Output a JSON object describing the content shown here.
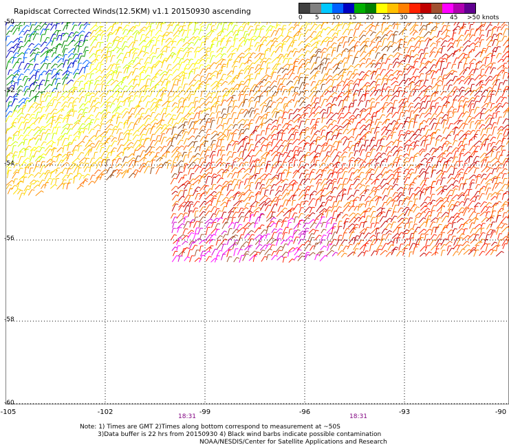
{
  "title": "Rapidscat Corrected Winds(12.5KM) v1.1 20150930 ascending",
  "legend": {
    "colors": [
      "#404040",
      "#808080",
      "#00c8ff",
      "#0060ff",
      "#0000c0",
      "#00b000",
      "#008000",
      "#ffff00",
      "#ffc000",
      "#ff8000",
      "#ff2000",
      "#c00000",
      "#a05030",
      "#ff00ff",
      "#b000b0",
      "#600090"
    ],
    "labels": [
      "0",
      "5",
      "10",
      "15",
      "20",
      "25",
      "30",
      "35",
      "40",
      "45",
      ">50 knots"
    ]
  },
  "map": {
    "lon_ticks": [
      "-105",
      "-102",
      "-99",
      "-96",
      "-93",
      "-90"
    ],
    "lat_ticks": [
      "-50",
      "-52",
      "-54",
      "-56",
      "-58",
      "-60"
    ],
    "time_labels": [
      "18:31",
      "18:31"
    ]
  },
  "notes": {
    "line1": "Note: 1) Times are GMT 2)Times along bottom correspond to measurement at ~50S",
    "line2": "3)Data buffer is 22 hrs from 20150930 4) Black wind barbs indicate possible contamination",
    "line3": "NOAA/NESDIS/Center for Satellite Applications and Research"
  }
}
